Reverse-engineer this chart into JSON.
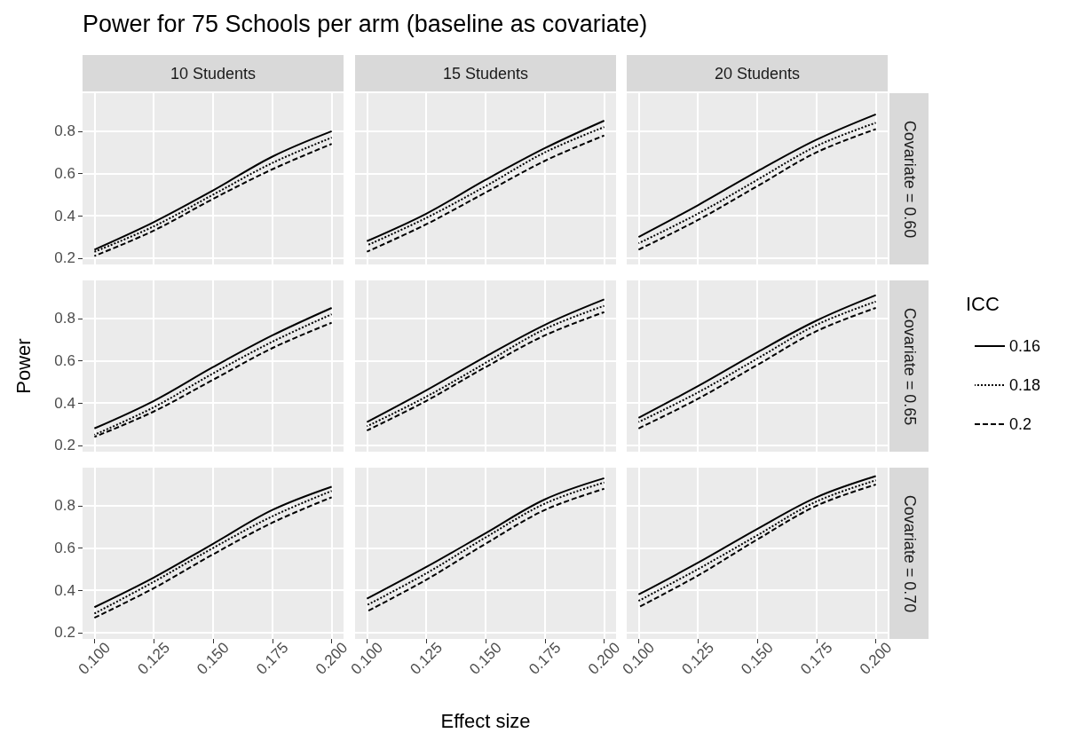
{
  "chart_data": [
    {
      "type": "line",
      "title": "Power for 75 Schools per arm (baseline as covariate)",
      "annotations": [
        "10 Students"
      ],
      "tick_labels": "y",
      "grid": true,
      "x": [
        0.1,
        0.125,
        0.15,
        0.175,
        0.2
      ],
      "xlim": [
        0.095,
        0.205
      ],
      "ylim": [
        0.17,
        0.98
      ],
      "xticks": [
        0.1,
        0.125,
        0.15,
        0.175,
        0.2
      ],
      "yticks": [
        0.2,
        0.4,
        0.6,
        0.8
      ],
      "series": [
        {
          "color": "#000000",
          "line_style": "solid",
          "values": [
            0.24,
            0.37,
            0.52,
            0.68,
            0.8
          ]
        },
        {
          "color": "#000000",
          "line_style": "dotted",
          "values": [
            0.23,
            0.35,
            0.5,
            0.65,
            0.77
          ]
        },
        {
          "color": "#000000",
          "line_style": "dashed",
          "values": [
            0.21,
            0.33,
            0.48,
            0.62,
            0.74
          ]
        }
      ]
    },
    {
      "type": "line",
      "annotations": [
        "15 Students"
      ],
      "tick_labels": false,
      "grid": true,
      "x": [
        0.1,
        0.125,
        0.15,
        0.175,
        0.2
      ],
      "xlim": [
        0.095,
        0.205
      ],
      "ylim": [
        0.17,
        0.98
      ],
      "xticks": [
        0.1,
        0.125,
        0.15,
        0.175,
        0.2
      ],
      "yticks": [
        0.2,
        0.4,
        0.6,
        0.8
      ],
      "series": [
        {
          "color": "#000000",
          "line_style": "solid",
          "values": [
            0.28,
            0.41,
            0.57,
            0.72,
            0.85
          ]
        },
        {
          "color": "#000000",
          "line_style": "dotted",
          "values": [
            0.26,
            0.39,
            0.54,
            0.7,
            0.82
          ]
        },
        {
          "color": "#000000",
          "line_style": "dashed",
          "values": [
            0.23,
            0.36,
            0.51,
            0.66,
            0.78
          ]
        }
      ]
    },
    {
      "type": "line",
      "annotations": [
        "20 Students",
        "Covariate = 0.60"
      ],
      "tick_labels": false,
      "grid": true,
      "x": [
        0.1,
        0.125,
        0.15,
        0.175,
        0.2
      ],
      "xlim": [
        0.095,
        0.205
      ],
      "ylim": [
        0.17,
        0.98
      ],
      "xticks": [
        0.1,
        0.125,
        0.15,
        0.175,
        0.2
      ],
      "yticks": [
        0.2,
        0.4,
        0.6,
        0.8
      ],
      "series": [
        {
          "color": "#000000",
          "line_style": "solid",
          "values": [
            0.3,
            0.45,
            0.61,
            0.76,
            0.88
          ]
        },
        {
          "color": "#000000",
          "line_style": "dotted",
          "values": [
            0.27,
            0.41,
            0.57,
            0.73,
            0.84
          ]
        },
        {
          "color": "#000000",
          "line_style": "dashed",
          "values": [
            0.24,
            0.38,
            0.54,
            0.7,
            0.81
          ]
        }
      ]
    },
    {
      "type": "line",
      "ylabel": "Power",
      "tick_labels": "y",
      "grid": true,
      "x": [
        0.1,
        0.125,
        0.15,
        0.175,
        0.2
      ],
      "xlim": [
        0.095,
        0.205
      ],
      "ylim": [
        0.17,
        0.98
      ],
      "xticks": [
        0.1,
        0.125,
        0.15,
        0.175,
        0.2
      ],
      "yticks": [
        0.2,
        0.4,
        0.6,
        0.8
      ],
      "series": [
        {
          "color": "#000000",
          "line_style": "solid",
          "values": [
            0.28,
            0.41,
            0.57,
            0.72,
            0.85
          ]
        },
        {
          "color": "#000000",
          "line_style": "dotted",
          "values": [
            0.25,
            0.38,
            0.54,
            0.69,
            0.82
          ]
        },
        {
          "color": "#000000",
          "line_style": "dashed",
          "values": [
            0.24,
            0.36,
            0.51,
            0.66,
            0.78
          ]
        }
      ]
    },
    {
      "type": "line",
      "tick_labels": false,
      "grid": true,
      "x": [
        0.1,
        0.125,
        0.15,
        0.175,
        0.2
      ],
      "xlim": [
        0.095,
        0.205
      ],
      "ylim": [
        0.17,
        0.98
      ],
      "xticks": [
        0.1,
        0.125,
        0.15,
        0.175,
        0.2
      ],
      "yticks": [
        0.2,
        0.4,
        0.6,
        0.8
      ],
      "series": [
        {
          "color": "#000000",
          "line_style": "solid",
          "values": [
            0.31,
            0.46,
            0.62,
            0.77,
            0.89
          ]
        },
        {
          "color": "#000000",
          "line_style": "dotted",
          "values": [
            0.29,
            0.43,
            0.59,
            0.75,
            0.86
          ]
        },
        {
          "color": "#000000",
          "line_style": "dashed",
          "values": [
            0.27,
            0.41,
            0.57,
            0.72,
            0.83
          ]
        }
      ]
    },
    {
      "type": "line",
      "annotations": [
        "Covariate = 0.65"
      ],
      "legend_title": "ICC",
      "legend": "right",
      "tick_labels": false,
      "grid": true,
      "x": [
        0.1,
        0.125,
        0.15,
        0.175,
        0.2
      ],
      "xlim": [
        0.095,
        0.205
      ],
      "ylim": [
        0.17,
        0.98
      ],
      "xticks": [
        0.1,
        0.125,
        0.15,
        0.175,
        0.2
      ],
      "yticks": [
        0.2,
        0.4,
        0.6,
        0.8
      ],
      "series": [
        {
          "name": "0.16",
          "color": "#000000",
          "line_style": "solid",
          "values": [
            0.33,
            0.48,
            0.64,
            0.79,
            0.91
          ]
        },
        {
          "name": "0.18",
          "color": "#000000",
          "line_style": "dotted",
          "values": [
            0.31,
            0.45,
            0.61,
            0.77,
            0.88
          ]
        },
        {
          "name": "0.2",
          "color": "#000000",
          "line_style": "dashed",
          "values": [
            0.28,
            0.42,
            0.58,
            0.74,
            0.85
          ]
        }
      ]
    },
    {
      "type": "line",
      "grid": true,
      "x": [
        0.1,
        0.125,
        0.15,
        0.175,
        0.2
      ],
      "xlim": [
        0.095,
        0.205
      ],
      "ylim": [
        0.17,
        0.98
      ],
      "xticks": [
        {
          "value": 0.1,
          "label": "0.100"
        },
        {
          "value": 0.125,
          "label": "0.125"
        },
        {
          "value": 0.15,
          "label": "0.150"
        },
        {
          "value": 0.175,
          "label": "0.175"
        },
        {
          "value": 0.2,
          "label": "0.200"
        }
      ],
      "yticks": [
        0.2,
        0.4,
        0.6,
        0.8
      ],
      "series": [
        {
          "color": "#000000",
          "line_style": "solid",
          "values": [
            0.32,
            0.46,
            0.62,
            0.78,
            0.89
          ]
        },
        {
          "color": "#000000",
          "line_style": "dotted",
          "values": [
            0.29,
            0.44,
            0.6,
            0.75,
            0.87
          ]
        },
        {
          "color": "#000000",
          "line_style": "dashed",
          "values": [
            0.27,
            0.41,
            0.57,
            0.72,
            0.84
          ]
        }
      ]
    },
    {
      "type": "line",
      "xlabel": "Effect size",
      "tick_labels": "x",
      "grid": true,
      "x": [
        0.1,
        0.125,
        0.15,
        0.175,
        0.2
      ],
      "xlim": [
        0.095,
        0.205
      ],
      "ylim": [
        0.17,
        0.98
      ],
      "xticks": [
        {
          "value": 0.1,
          "label": "0.100"
        },
        {
          "value": 0.125,
          "label": "0.125"
        },
        {
          "value": 0.15,
          "label": "0.150"
        },
        {
          "value": 0.175,
          "label": "0.175"
        },
        {
          "value": 0.2,
          "label": "0.200"
        }
      ],
      "yticks": [
        0.2,
        0.4,
        0.6,
        0.8
      ],
      "series": [
        {
          "color": "#000000",
          "line_style": "solid",
          "values": [
            0.36,
            0.51,
            0.67,
            0.83,
            0.93
          ]
        },
        {
          "color": "#000000",
          "line_style": "dotted",
          "values": [
            0.33,
            0.48,
            0.65,
            0.81,
            0.91
          ]
        },
        {
          "color": "#000000",
          "line_style": "dashed",
          "values": [
            0.3,
            0.45,
            0.62,
            0.78,
            0.88
          ]
        }
      ]
    },
    {
      "type": "line",
      "annotations": [
        "Covariate = 0.70"
      ],
      "tick_labels": "x",
      "grid": true,
      "x": [
        0.1,
        0.125,
        0.15,
        0.175,
        0.2
      ],
      "xlim": [
        0.095,
        0.205
      ],
      "ylim": [
        0.17,
        0.98
      ],
      "xticks": [
        {
          "value": 0.1,
          "label": "0.100"
        },
        {
          "value": 0.125,
          "label": "0.125"
        },
        {
          "value": 0.15,
          "label": "0.150"
        },
        {
          "value": 0.175,
          "label": "0.175"
        },
        {
          "value": 0.2,
          "label": "0.200"
        }
      ],
      "yticks": [
        0.2,
        0.4,
        0.6,
        0.8
      ],
      "series": [
        {
          "color": "#000000",
          "line_style": "solid",
          "values": [
            0.38,
            0.53,
            0.69,
            0.84,
            0.94
          ]
        },
        {
          "color": "#000000",
          "line_style": "dotted",
          "values": [
            0.35,
            0.5,
            0.66,
            0.82,
            0.92
          ]
        },
        {
          "color": "#000000",
          "line_style": "dashed",
          "values": [
            0.32,
            0.47,
            0.64,
            0.8,
            0.9
          ]
        }
      ]
    }
  ]
}
